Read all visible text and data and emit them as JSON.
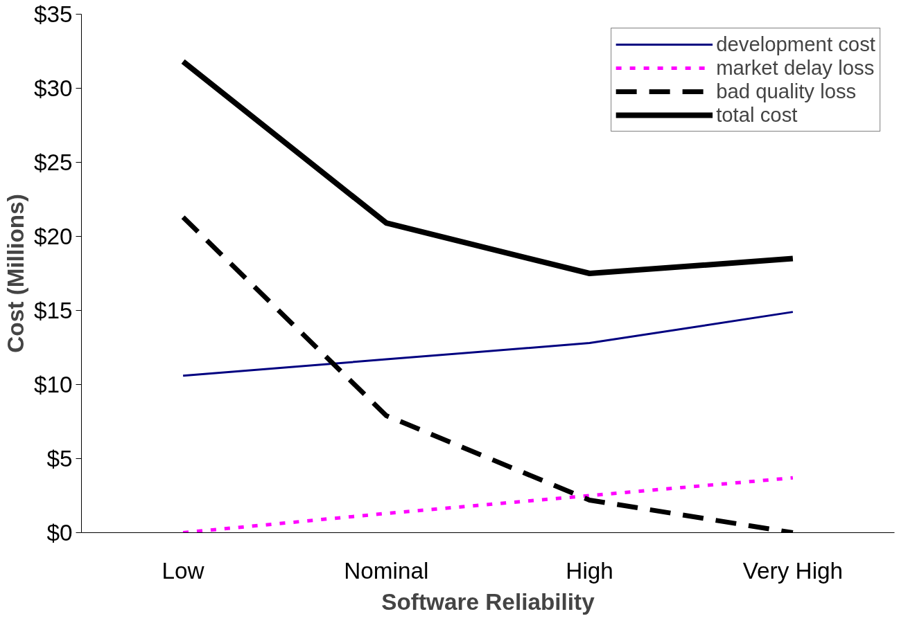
{
  "chart_data": {
    "type": "line",
    "xlabel": "Software Reliability",
    "ylabel": "Cost (Millions)",
    "categories": [
      "Low",
      "Nominal",
      "High",
      "Very High"
    ],
    "series": [
      {
        "name": "development cost",
        "color": "#000080",
        "line_style": "solid",
        "values": [
          10.6,
          11.7,
          12.8,
          14.9
        ]
      },
      {
        "name": "market delay loss",
        "color": "#ff00ff",
        "line_style": "dotted",
        "values": [
          0,
          1.3,
          2.5,
          3.7
        ]
      },
      {
        "name": "bad quality loss",
        "color": "#000000",
        "line_style": "dashed",
        "values": [
          21.3,
          7.9,
          2.2,
          0
        ]
      },
      {
        "name": "total cost",
        "color": "#000000",
        "line_style": "solid",
        "values": [
          31.8,
          20.9,
          17.5,
          18.5
        ]
      }
    ],
    "ylim": [
      0,
      35
    ],
    "yticks": [
      {
        "value": 0,
        "label": "$0"
      },
      {
        "value": 5,
        "label": "$5"
      },
      {
        "value": 10,
        "label": "$10"
      },
      {
        "value": 15,
        "label": "$15"
      },
      {
        "value": 20,
        "label": "$20"
      },
      {
        "value": 25,
        "label": "$25"
      },
      {
        "value": 30,
        "label": "$30"
      },
      {
        "value": 35,
        "label": "$35"
      }
    ],
    "grid": false,
    "legend": "top right",
    "marker": "none"
  }
}
